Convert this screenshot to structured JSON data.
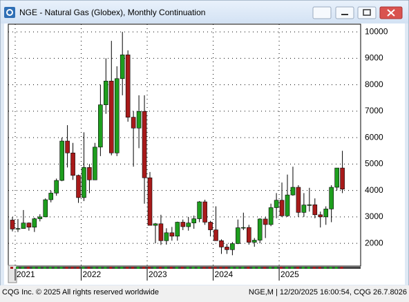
{
  "window": {
    "title": "NGE - Natural Gas (Globex), Monthly Continuation"
  },
  "chart_data": {
    "type": "candlestick",
    "up_color": "#1e9e1e",
    "down_color": "#a81a1a",
    "ylim": [
      1140,
      10290
    ],
    "yticks": [
      2000,
      3000,
      4000,
      5000,
      6000,
      7000,
      8000,
      9000,
      10000
    ],
    "grid": true,
    "xticks": [
      {
        "value": 1,
        "label": "2021"
      },
      {
        "value": 13,
        "label": "2022"
      },
      {
        "value": 25,
        "label": "2023"
      },
      {
        "value": 37,
        "label": "2024"
      },
      {
        "value": 49,
        "label": "2025"
      }
    ],
    "open": [
      2880,
      2540,
      2560,
      2770,
      2610,
      2930,
      3000,
      3650,
      3900,
      4380,
      5870,
      5420,
      4570,
      3730,
      4870,
      4400,
      5640,
      7240,
      8140,
      5420,
      8230,
      9130,
      6770,
      6360,
      6990,
      4480,
      2680,
      2740,
      2100,
      2400,
      2270,
      2800,
      2630,
      2770,
      2930,
      3570,
      2800,
      2510,
      2100,
      1860,
      1760,
      1990,
      2590,
      2600,
      2040,
      2120,
      2920,
      2710,
      3350,
      3630,
      3040,
      3830,
      4120,
      3170,
      3450,
      3460,
      3080,
      3000,
      3300,
      4120,
      4850
    ],
    "high": [
      3000,
      2920,
      3260,
      2790,
      2970,
      3100,
      3700,
      4000,
      4450,
      6000,
      6470,
      5800,
      4600,
      6200,
      5000,
      5800,
      8000,
      9000,
      9660,
      8700,
      10000,
      9300,
      7000,
      7600,
      7600,
      4700,
      2770,
      3080,
      2570,
      2620,
      2820,
      2900,
      3000,
      3050,
      3600,
      3650,
      2850,
      3400,
      2150,
      1980,
      2050,
      2900,
      3160,
      2700,
      2200,
      2950,
      3000,
      3500,
      3900,
      4300,
      4600,
      4900,
      4200,
      3900,
      4100,
      3700,
      3200,
      3400,
      4200,
      4850,
      5500
    ],
    "low": [
      2450,
      2430,
      2550,
      2480,
      2430,
      2830,
      3000,
      3550,
      3800,
      4350,
      4870,
      4400,
      3530,
      3600,
      3900,
      4400,
      5300,
      6900,
      5330,
      5300,
      7600,
      6600,
      4900,
      5600,
      3500,
      2700,
      2000,
      1940,
      1950,
      2100,
      2100,
      2500,
      2480,
      2550,
      2800,
      2700,
      2260,
      2100,
      1600,
      1600,
      1550,
      1970,
      2500,
      1950,
      1870,
      2000,
      2200,
      2650,
      2950,
      3000,
      3000,
      3800,
      3000,
      3000,
      3200,
      2950,
      2600,
      2700,
      2800,
      4000,
      3900
    ],
    "close": [
      2540,
      2560,
      2770,
      2610,
      2930,
      3000,
      3650,
      3900,
      4380,
      5870,
      5420,
      4570,
      3730,
      4870,
      4400,
      5640,
      7240,
      8140,
      5420,
      8230,
      9130,
      6770,
      6360,
      6990,
      4480,
      2680,
      2740,
      2100,
      2400,
      2270,
      2800,
      2630,
      2770,
      2930,
      3570,
      2800,
      2510,
      2100,
      1860,
      1760,
      1990,
      2590,
      2600,
      2040,
      2120,
      2920,
      2710,
      3350,
      3630,
      3040,
      3830,
      4120,
      3170,
      3450,
      3460,
      3080,
      3000,
      3300,
      4120,
      4850,
      4050
    ]
  },
  "status": {
    "left": "CQG Inc. © 2025 All rights reserved worldwide",
    "right": "NGE,M | 12/20/2025 16:00:54, CQG 26.7.8026"
  }
}
